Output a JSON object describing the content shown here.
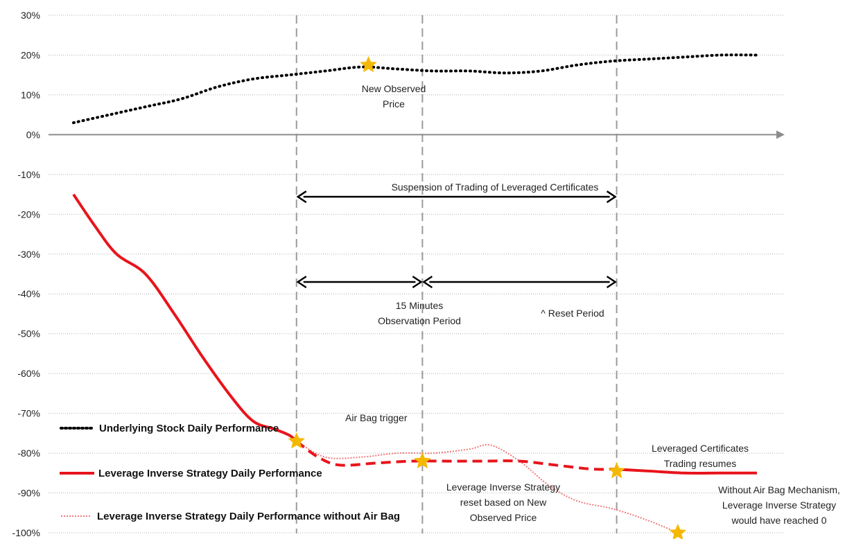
{
  "chart_data": {
    "type": "line",
    "title": "",
    "xlabel": "",
    "ylabel": "",
    "ylim": [
      -100,
      30
    ],
    "y_ticks": [
      30,
      20,
      10,
      0,
      -10,
      -20,
      -30,
      -40,
      -50,
      -60,
      -70,
      -80,
      -90,
      -100
    ],
    "y_tick_labels": [
      "30%",
      "20%",
      "10%",
      "0%",
      "-10%",
      "-20%",
      "-30%",
      "-40%",
      "-50%",
      "-60%",
      "-70%",
      "-80%",
      "-90%",
      "-100%"
    ],
    "grid": true,
    "legend_position": "bottom-left",
    "series": [
      {
        "name": "Underlying Stock Daily Performance",
        "style": "dotted",
        "color": "#000000",
        "points": [
          [
            0,
            3
          ],
          [
            5,
            5
          ],
          [
            10,
            7
          ],
          [
            15,
            9
          ],
          [
            20,
            12
          ],
          [
            25,
            14
          ],
          [
            30,
            15
          ],
          [
            35,
            16
          ],
          [
            40,
            17
          ],
          [
            45,
            16.5
          ],
          [
            50,
            16
          ],
          [
            55,
            16
          ],
          [
            60,
            15.5
          ],
          [
            65,
            16
          ],
          [
            70,
            17.5
          ],
          [
            75,
            18.5
          ],
          [
            80,
            19
          ],
          [
            85,
            19.5
          ],
          [
            90,
            20
          ],
          [
            95,
            20
          ]
        ]
      },
      {
        "name": "Leverage Inverse Strategy Daily Performance",
        "style": "solid-then-dashed",
        "color": "#e8141b",
        "solid_points_1": [
          [
            0,
            -15
          ],
          [
            3,
            -23
          ],
          [
            6,
            -30
          ],
          [
            10,
            -35
          ],
          [
            14,
            -45
          ],
          [
            18,
            -56
          ],
          [
            22,
            -66
          ],
          [
            25,
            -72
          ],
          [
            28,
            -74
          ],
          [
            30,
            -75.5
          ],
          [
            31,
            -77
          ]
        ],
        "dashed_points": [
          [
            31,
            -77
          ],
          [
            34,
            -81
          ],
          [
            37,
            -83
          ],
          [
            42,
            -82.5
          ],
          [
            47,
            -82
          ],
          [
            52,
            -82
          ],
          [
            57,
            -82
          ],
          [
            62,
            -82
          ],
          [
            67,
            -83
          ],
          [
            72,
            -84
          ],
          [
            75,
            -84
          ]
        ],
        "solid_points_2": [
          [
            75,
            -84
          ],
          [
            80,
            -84.5
          ],
          [
            85,
            -85
          ],
          [
            90,
            -85
          ],
          [
            95,
            -85
          ]
        ]
      },
      {
        "name": "Leverage Inverse Strategy Daily Performance without Air Bag",
        "style": "dotted",
        "color": "#f0797c",
        "points": [
          [
            31,
            -77
          ],
          [
            35,
            -81
          ],
          [
            40,
            -81
          ],
          [
            45,
            -80
          ],
          [
            50,
            -80
          ],
          [
            55,
            -79
          ],
          [
            58,
            -78
          ],
          [
            62,
            -82
          ],
          [
            66,
            -88
          ],
          [
            70,
            -92
          ],
          [
            75,
            -94
          ],
          [
            80,
            -97
          ],
          [
            84,
            -100
          ]
        ]
      }
    ],
    "markers": [
      {
        "label": "new-observed-price-star",
        "x": 41,
        "y": 17.5
      },
      {
        "label": "air-bag-trigger-star",
        "x": 31,
        "y": -77
      },
      {
        "label": "reset-star",
        "x": 48.5,
        "y": -82
      },
      {
        "label": "trading-resumes-star",
        "x": 75.5,
        "y": -84.5
      },
      {
        "label": "reached-zero-star",
        "x": 84,
        "y": -100
      }
    ],
    "annotations": {
      "new_observed_price": [
        "New Observed",
        "Price"
      ],
      "suspension": "Suspension of  Trading of Leveraged Certificates",
      "observation_period": [
        "15 Minutes",
        "Observation Period"
      ],
      "reset_period": "^ Reset Period",
      "air_bag_trigger": "Air Bag trigger",
      "trading_resumes": [
        "Leveraged Certificates",
        "Trading resumes"
      ],
      "reset_based": [
        "Leverage Inverse Strategy",
        "reset based on New",
        "Observed Price"
      ],
      "without_airbag": [
        "Without Air Bag Mechanism,",
        "Leverage Inverse Strategy",
        "would have reached 0"
      ]
    },
    "colors": {
      "grid": "#b0b0b0",
      "vline": "#9a9a9a",
      "star": "#f5b800",
      "axis": "#8c8c8c"
    }
  }
}
